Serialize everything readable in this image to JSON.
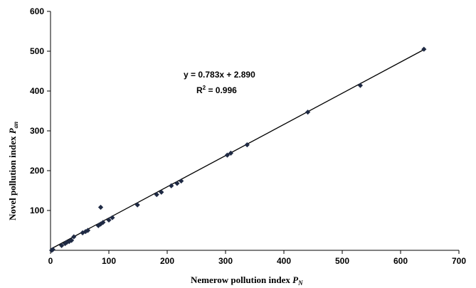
{
  "chart_data": {
    "type": "scatter",
    "xlabel": {
      "text": "Nemerow pollution index ",
      "var": "P",
      "sub": "N"
    },
    "ylabel": {
      "text": "Novel pollution index ",
      "var": "P",
      "sub": "an"
    },
    "xlim": [
      0,
      700
    ],
    "ylim": [
      0,
      600
    ],
    "x_ticks": [
      "0",
      "100",
      "200",
      "300",
      "400",
      "500",
      "600",
      "700"
    ],
    "y_ticks": [
      "100",
      "200",
      "300",
      "400",
      "500",
      "600"
    ],
    "trendline": {
      "slope": 0.783,
      "intercept": 2.89,
      "equation": "y = 0.783x + 2.890",
      "r2_prefix": "R",
      "r2_sup": "2",
      "r2_value": " = 0.996"
    },
    "marker_color": "#1f2a44",
    "line_color": "#000000",
    "points": [
      {
        "x": 2,
        "y": 0
      },
      {
        "x": 4,
        "y": 2
      },
      {
        "x": 19,
        "y": 12
      },
      {
        "x": 25,
        "y": 17
      },
      {
        "x": 28,
        "y": 20
      },
      {
        "x": 32,
        "y": 22
      },
      {
        "x": 36,
        "y": 25
      },
      {
        "x": 40,
        "y": 34
      },
      {
        "x": 55,
        "y": 44
      },
      {
        "x": 60,
        "y": 47
      },
      {
        "x": 64,
        "y": 50
      },
      {
        "x": 82,
        "y": 62
      },
      {
        "x": 86,
        "y": 66
      },
      {
        "x": 90,
        "y": 70
      },
      {
        "x": 86,
        "y": 108
      },
      {
        "x": 100,
        "y": 76
      },
      {
        "x": 106,
        "y": 82
      },
      {
        "x": 149,
        "y": 114
      },
      {
        "x": 182,
        "y": 140
      },
      {
        "x": 190,
        "y": 146
      },
      {
        "x": 207,
        "y": 162
      },
      {
        "x": 217,
        "y": 168
      },
      {
        "x": 224,
        "y": 174
      },
      {
        "x": 303,
        "y": 239
      },
      {
        "x": 309,
        "y": 244
      },
      {
        "x": 337,
        "y": 265
      },
      {
        "x": 441,
        "y": 347
      },
      {
        "x": 531,
        "y": 414
      },
      {
        "x": 640,
        "y": 505
      }
    ]
  }
}
